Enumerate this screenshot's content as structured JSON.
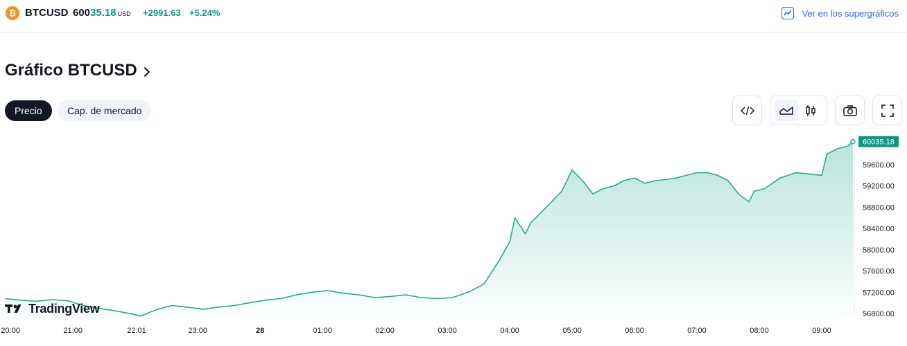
{
  "ticker": {
    "icon_glyph": "₿",
    "symbol": "BTCUSD",
    "price_lead": "600",
    "price_tail": "35.18",
    "currency": "USD",
    "change_abs": "+2991.63",
    "change_pct": "+5.24%",
    "link_label": "Ver en los supergráficos"
  },
  "page_title": "Gráfico BTCUSD",
  "tabs": [
    {
      "label": "Precio",
      "active": true
    },
    {
      "label": "Cap. de mercado",
      "active": false
    }
  ],
  "toolbar": {
    "embed_icon": "code-icon",
    "area_icon": "area-chart-icon",
    "candles_icon": "candlestick-icon",
    "snapshot_icon": "camera-icon",
    "fullscreen_icon": "fullscreen-icon",
    "selected": "area"
  },
  "logo_text": "TradingView",
  "colors": {
    "accent_green": "#089981",
    "line": "#22ab94",
    "link_blue": "#2962ff",
    "btc_orange": "#f7931a"
  },
  "chart_data": {
    "type": "area",
    "title": "",
    "xlabel": "",
    "ylabel": "",
    "ylim": [
      56700,
      60100
    ],
    "xlim": [
      20.0,
      9.55
    ],
    "grid": false,
    "last_value_label": "60035.18",
    "y_ticks": [
      59600,
      59200,
      58800,
      58400,
      58000,
      57600,
      57200,
      56800
    ],
    "y_tick_labels": [
      "59600.00",
      "59200.00",
      "58800.00",
      "58400.00",
      "58000.00",
      "57600.00",
      "57200.00",
      "56800.00"
    ],
    "x_ticks": [
      {
        "t": 20.0,
        "label": "20:00",
        "bold": false
      },
      {
        "t": 21.0,
        "label": "21:00",
        "bold": false
      },
      {
        "t": 22.02,
        "label": "22:01",
        "bold": false
      },
      {
        "t": 23.0,
        "label": "23:00",
        "bold": false
      },
      {
        "t": 24.0,
        "label": "28",
        "bold": true
      },
      {
        "t": 25.0,
        "label": "01:00",
        "bold": false
      },
      {
        "t": 26.0,
        "label": "02:00",
        "bold": false
      },
      {
        "t": 27.0,
        "label": "03:00",
        "bold": false
      },
      {
        "t": 28.0,
        "label": "04:00",
        "bold": false
      },
      {
        "t": 29.0,
        "label": "05:00",
        "bold": false
      },
      {
        "t": 30.0,
        "label": "06:00",
        "bold": false
      },
      {
        "t": 31.0,
        "label": "07:00",
        "bold": false
      },
      {
        "t": 32.0,
        "label": "08:00",
        "bold": false
      },
      {
        "t": 33.0,
        "label": "09:00",
        "bold": false
      }
    ],
    "series": [
      {
        "x": [
          "19:55",
          "20:10",
          "20:25",
          "20:40",
          "20:55",
          "21:10",
          "21:25",
          "21:40",
          "21:55",
          "22:05",
          "22:20",
          "22:35",
          "22:50",
          "23:05",
          "23:20",
          "23:35",
          "23:50",
          "00:05",
          "00:20",
          "00:35",
          "00:50",
          "01:05",
          "01:20",
          "01:35",
          "01:50",
          "02:05",
          "02:20",
          "02:35",
          "02:50",
          "03:05",
          "03:20",
          "03:35",
          "03:50",
          "04:00",
          "04:05",
          "04:10",
          "04:15",
          "04:20",
          "04:30",
          "04:40",
          "04:50",
          "05:00",
          "05:10",
          "05:20",
          "05:30",
          "05:40",
          "05:50",
          "06:00",
          "06:10",
          "06:20",
          "06:30",
          "06:40",
          "06:50",
          "07:00",
          "07:10",
          "07:20",
          "07:30",
          "07:40",
          "07:50",
          "07:55",
          "08:05",
          "08:20",
          "08:35",
          "08:50",
          "09:00",
          "09:05",
          "09:15",
          "09:25",
          "09:30"
        ],
        "values": [
          57080,
          57050,
          57030,
          57060,
          57040,
          56950,
          56900,
          56850,
          56800,
          56750,
          56870,
          56950,
          56920,
          56880,
          56920,
          56950,
          57000,
          57050,
          57080,
          57150,
          57200,
          57230,
          57180,
          57150,
          57100,
          57120,
          57150,
          57100,
          57080,
          57100,
          57200,
          57350,
          57800,
          58150,
          58600,
          58450,
          58300,
          58500,
          58700,
          58900,
          59100,
          59500,
          59300,
          59050,
          59150,
          59200,
          59300,
          59350,
          59250,
          59300,
          59320,
          59350,
          59400,
          59450,
          59450,
          59400,
          59300,
          59050,
          58900,
          59100,
          59150,
          59350,
          59450,
          59420,
          59400,
          59800,
          59900,
          59950,
          60035
        ]
      }
    ]
  }
}
